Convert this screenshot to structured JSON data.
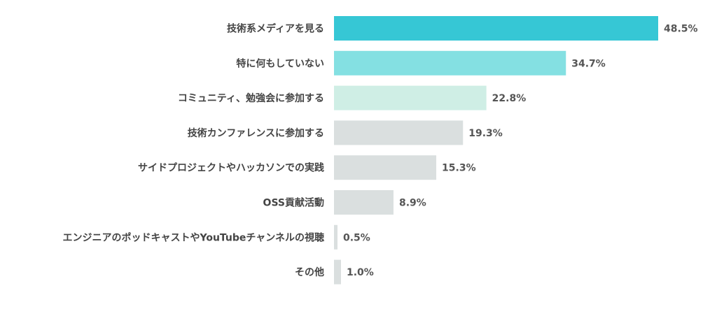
{
  "chart_data": {
    "type": "bar",
    "orientation": "horizontal",
    "categories": [
      "技術系メディアを見る",
      "特に何もしていない",
      "コミュニティ、勉強会に参加する",
      "技術カンファレンスに参加する",
      "サイドプロジェクトやハッカソンでの実践",
      "OSS貢献活動",
      "エンジニアのポッドキャストやYouTubeチャンネルの視聴",
      "その他"
    ],
    "values": [
      48.5,
      34.7,
      22.8,
      19.3,
      15.3,
      8.9,
      0.5,
      1.0
    ],
    "value_labels": [
      "48.5%",
      "34.7%",
      "22.8%",
      "19.3%",
      "15.3%",
      "8.9%",
      "0.5%",
      "1.0%"
    ],
    "colors": [
      "#36c7d5",
      "#84e0e2",
      "#cfeee5",
      "#dadfdf",
      "#dadfdf",
      "#dadfdf",
      "#dadfdf",
      "#dadfdf"
    ],
    "xlim": [
      0,
      48.5
    ],
    "grid": false,
    "legend": "none"
  }
}
